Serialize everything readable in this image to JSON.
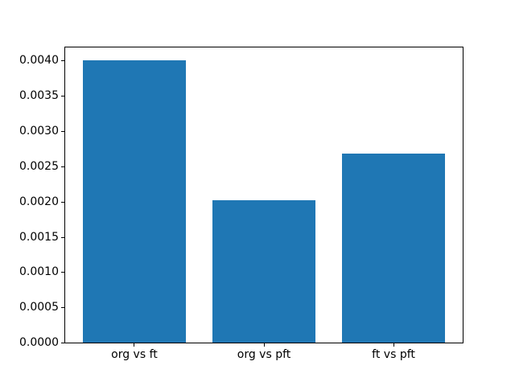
{
  "chart_data": {
    "type": "bar",
    "categories": [
      "org vs ft",
      "org vs pft",
      "ft vs pft"
    ],
    "values": [
      0.00401,
      0.00202,
      0.00268
    ],
    "title": "",
    "xlabel": "",
    "ylabel": "",
    "ylim": [
      0,
      0.00421
    ],
    "yticks": [
      0.0,
      0.0005,
      0.001,
      0.0015,
      0.002,
      0.0025,
      0.003,
      0.0035,
      0.004
    ],
    "ytick_labels": [
      "0.0000",
      "0.0005",
      "0.0010",
      "0.0015",
      "0.0020",
      "0.0025",
      "0.0030",
      "0.0035",
      "0.0040"
    ],
    "bar_color": "#1f77b4",
    "spine_color": "#000000",
    "background_color": "#ffffff",
    "grid": false,
    "legend": null
  }
}
